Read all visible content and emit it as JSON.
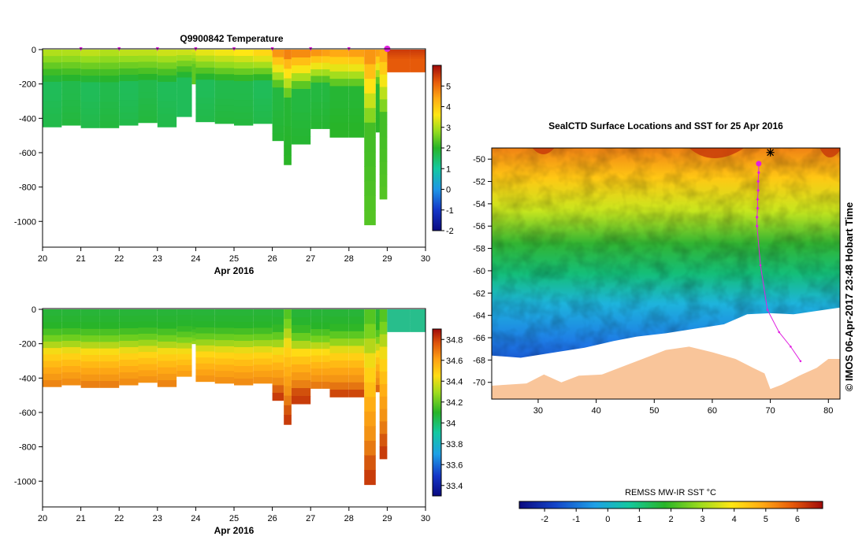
{
  "colors": {
    "land": "#f9c59a",
    "ice": "#ffffff",
    "track": "#e020e0",
    "axis": "#000000"
  },
  "chart_data": [
    {
      "id": "temperature-section",
      "type": "heatmap",
      "title": "Q9900842  Temperature",
      "xlabel": "Apr 2016",
      "xlim": [
        20,
        30
      ],
      "xticks": [
        "20",
        "21",
        "22",
        "23",
        "24",
        "25",
        "26",
        "27",
        "28",
        "29",
        "30"
      ],
      "ylim": [
        0,
        -1150
      ],
      "yticks": [
        "0",
        "-200",
        "-400",
        "-600",
        "-800",
        "-1000"
      ],
      "surface_markers": [
        21,
        22,
        23,
        24,
        25,
        26,
        27,
        28
      ],
      "last_marker": 29,
      "colorbar": {
        "range": [
          -2,
          6
        ],
        "ticks": [
          "5",
          "4",
          "3",
          "2",
          "1",
          "0",
          "-1",
          "-2"
        ]
      },
      "profiles": [
        {
          "day": 20.0,
          "max_depth": 450,
          "surface": 3.0,
          "deep": 1.6
        },
        {
          "day": 20.5,
          "max_depth": 440,
          "surface": 3.0,
          "deep": 1.7
        },
        {
          "day": 21.0,
          "max_depth": 455,
          "surface": 3.1,
          "deep": 1.6
        },
        {
          "day": 21.5,
          "max_depth": 455,
          "surface": 3.0,
          "deep": 1.7
        },
        {
          "day": 22.0,
          "max_depth": 440,
          "surface": 3.1,
          "deep": 1.6
        },
        {
          "day": 22.5,
          "max_depth": 425,
          "surface": 3.1,
          "deep": 1.7
        },
        {
          "day": 23.0,
          "max_depth": 450,
          "surface": 3.2,
          "deep": 1.6
        },
        {
          "day": 23.5,
          "max_depth": 390,
          "surface": 3.2,
          "deep": 1.6
        },
        {
          "day": 23.9,
          "max_depth": 200,
          "surface": 3.3,
          "deep": 2.4
        },
        {
          "day": 24.0,
          "max_depth": 420,
          "surface": 3.4,
          "deep": 1.6
        },
        {
          "day": 24.5,
          "max_depth": 430,
          "surface": 3.5,
          "deep": 1.7
        },
        {
          "day": 25.0,
          "max_depth": 440,
          "surface": 3.6,
          "deep": 1.7
        },
        {
          "day": 25.5,
          "max_depth": 430,
          "surface": 3.8,
          "deep": 1.6
        },
        {
          "day": 26.0,
          "max_depth": 530,
          "surface": 4.6,
          "deep": 1.8
        },
        {
          "day": 26.3,
          "max_depth": 670,
          "surface": 4.8,
          "deep": 1.9
        },
        {
          "day": 26.5,
          "max_depth": 550,
          "surface": 4.7,
          "deep": 1.8
        },
        {
          "day": 27.0,
          "max_depth": 460,
          "surface": 4.6,
          "deep": 1.8
        },
        {
          "day": 27.3,
          "max_depth": 460,
          "surface": 4.5,
          "deep": 1.8
        },
        {
          "day": 27.5,
          "max_depth": 510,
          "surface": 4.4,
          "deep": 1.9
        },
        {
          "day": 28.0,
          "max_depth": 510,
          "surface": 4.5,
          "deep": 1.9
        },
        {
          "day": 28.4,
          "max_depth": 1020,
          "surface": 4.6,
          "deep": 2.2
        },
        {
          "day": 28.7,
          "max_depth": 480,
          "surface": 4.5,
          "deep": 1.9
        },
        {
          "day": 28.8,
          "max_depth": 870,
          "surface": 4.4,
          "deep": 2.2
        },
        {
          "day": 29.0,
          "max_depth": 130,
          "surface": 5.5,
          "deep": 5.2
        },
        {
          "day": 29.6,
          "max_depth": 130,
          "surface": 5.5,
          "deep": 5.2
        }
      ]
    },
    {
      "id": "salinity-section",
      "type": "heatmap",
      "title": "",
      "xlabel": "Apr 2016",
      "xlim": [
        20,
        30
      ],
      "xticks": [
        "20",
        "21",
        "22",
        "23",
        "24",
        "25",
        "26",
        "27",
        "28",
        "29",
        "30"
      ],
      "ylim": [
        0,
        -1150
      ],
      "yticks": [
        "0",
        "-200",
        "-400",
        "-600",
        "-800",
        "-1000"
      ],
      "colorbar": {
        "range": [
          33.3,
          34.9
        ],
        "ticks": [
          "34.8",
          "34.6",
          "34.4",
          "34.2",
          "34",
          "33.8",
          "33.6",
          "33.4"
        ]
      }
    },
    {
      "id": "sst-map",
      "type": "heatmap",
      "title": "SealCTD Surface Locations and SST for 25 Apr 2016",
      "xlim": [
        22,
        82
      ],
      "ylim": [
        -71.5,
        -49
      ],
      "xticks": [
        "30",
        "40",
        "50",
        "60",
        "70",
        "80"
      ],
      "yticks": [
        "-50",
        "-52",
        "-54",
        "-56",
        "-58",
        "-60",
        "-62",
        "-64",
        "-66",
        "-68",
        "-70"
      ],
      "track": [
        {
          "lon": 68.0,
          "lat": -50.4
        },
        {
          "lon": 68.0,
          "lat": -51.2
        },
        {
          "lon": 67.9,
          "lat": -52.0
        },
        {
          "lon": 67.9,
          "lat": -52.8
        },
        {
          "lon": 67.8,
          "lat": -53.6
        },
        {
          "lon": 67.8,
          "lat": -54.4
        },
        {
          "lon": 67.7,
          "lat": -55.2
        },
        {
          "lon": 67.7,
          "lat": -56.0
        },
        {
          "lon": 68.3,
          "lat": -59.5
        },
        {
          "lon": 69.5,
          "lat": -63.5
        },
        {
          "lon": 71.5,
          "lat": -65.5
        },
        {
          "lon": 73.5,
          "lat": -66.8
        },
        {
          "lon": 75.2,
          "lat": -68.1
        }
      ],
      "colorbar": {
        "label": "REMSS MW-IR SST °C",
        "range": [
          -2.8,
          6.8
        ],
        "ticks": [
          "-2",
          "-1",
          "0",
          "1",
          "2",
          "3",
          "4",
          "5",
          "6"
        ]
      },
      "credit": "© IMOS 06-Apr-2017 23:48 Hobart Time"
    }
  ]
}
